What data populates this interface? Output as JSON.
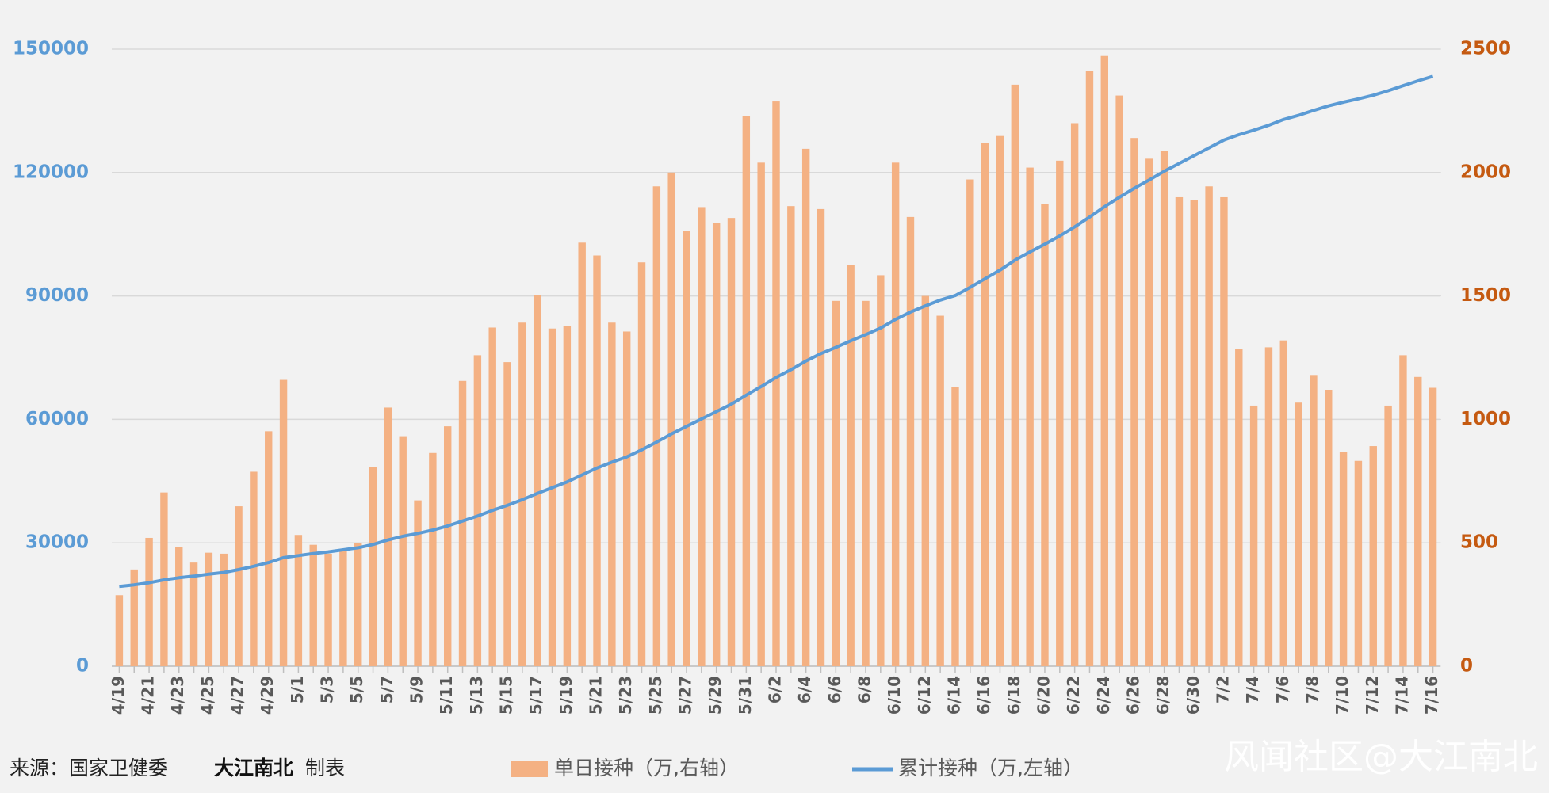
{
  "chart_data": {
    "type": "bar_line",
    "categories": [
      "4/19",
      null,
      "4/21",
      null,
      "4/23",
      null,
      "4/25",
      null,
      "4/27",
      null,
      "4/29",
      null,
      "5/1",
      null,
      "5/3",
      null,
      "5/5",
      null,
      "5/7",
      null,
      "5/9",
      null,
      "5/11",
      null,
      "5/13",
      null,
      "5/15",
      null,
      "5/17",
      null,
      "5/19",
      null,
      "5/21",
      null,
      "5/23",
      null,
      "5/25",
      null,
      "5/27",
      null,
      "5/29",
      null,
      "5/31",
      null,
      "6/2",
      null,
      "6/4",
      null,
      "6/6",
      null,
      "6/8",
      null,
      "6/10",
      null,
      "6/12",
      null,
      "6/14",
      null,
      "6/16",
      null,
      "6/18",
      null,
      "6/20",
      null,
      "6/22",
      null,
      "6/24",
      null,
      "6/26",
      null,
      "6/28",
      null,
      "6/30",
      null,
      "7/2",
      null,
      "7/4",
      null,
      "7/6",
      null,
      "7/8",
      null,
      "7/10",
      null,
      "7/12",
      null,
      "7/14",
      null,
      "7/16"
    ],
    "series": [
      {
        "name": "单日接种（万,右轴）",
        "color": "#f4b183",
        "axis": "y2",
        "kind": "bar",
        "values": [
          288,
          392,
          520,
          704,
          484,
          420,
          460,
          456,
          648,
          788,
          952,
          1160,
          532,
          492,
          456,
          468,
          500,
          808,
          1048,
          932,
          672,
          864,
          972,
          1156,
          1260,
          1372,
          1232,
          1392,
          1504,
          1368,
          1380,
          1716,
          1664,
          1392,
          1356,
          1636,
          1944,
          2000,
          1764,
          1860,
          1796,
          1816,
          2228,
          2040,
          2288,
          1864,
          2096,
          1852,
          1480,
          1624,
          1480,
          1584,
          2040,
          1820,
          1500,
          1420,
          1132,
          1972,
          2120,
          2148,
          2356,
          2020,
          1872,
          2048,
          2200,
          2412,
          2472,
          2312,
          2140,
          2056,
          2088,
          1900,
          1888,
          1944,
          1900,
          1284,
          1056,
          1292,
          1320,
          1068,
          1180,
          1120,
          868,
          832,
          892,
          1056,
          1260,
          1172,
          1128
        ]
      },
      {
        "name": "累计接种（万,左轴）",
        "color": "#5b9bd5",
        "axis": "y",
        "kind": "line",
        "values": [
          19400,
          19800,
          20300,
          21000,
          21500,
          21900,
          22400,
          22800,
          23500,
          24300,
          25200,
          26400,
          26900,
          27400,
          27800,
          28300,
          28800,
          29600,
          30700,
          31600,
          32300,
          33100,
          34100,
          35300,
          36500,
          37900,
          39100,
          40500,
          42000,
          43400,
          44800,
          46500,
          48200,
          49600,
          50900,
          52600,
          54500,
          56500,
          58300,
          60100,
          61900,
          63700,
          65900,
          68000,
          70200,
          72100,
          74200,
          76000,
          77500,
          79100,
          80600,
          82200,
          84300,
          86100,
          87600,
          89000,
          90100,
          92100,
          94200,
          96300,
          98700,
          100700,
          102600,
          104600,
          106800,
          109200,
          111700,
          114000,
          116200,
          118200,
          120300,
          122200,
          124100,
          126000,
          127900,
          129200,
          130300,
          131500,
          132900,
          133900,
          135100,
          136200,
          137100,
          137900,
          138800,
          139900,
          141100,
          142300,
          143400
        ]
      }
    ],
    "ylim": [
      0,
      150000
    ],
    "yticks": [
      0,
      30000,
      60000,
      90000,
      120000,
      150000
    ],
    "ytick_color": "#5b9bd5",
    "y2lim": [
      0,
      2500
    ],
    "y2ticks": [
      0,
      500,
      1000,
      1500,
      2000,
      2500
    ],
    "y2tick_color": "#c55a11",
    "grid": true
  },
  "footer": {
    "source": "来源：国家卫健委",
    "author": "大江南北",
    "suffix": "制表",
    "watermark": "风闻社区@大江南北"
  }
}
